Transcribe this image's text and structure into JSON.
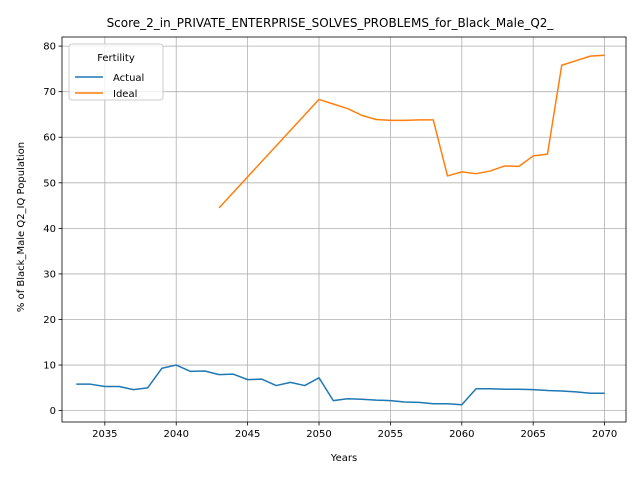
{
  "chart_data": {
    "type": "line",
    "title": "Score_2_in_PRIVATE_ENTERPRISE_SOLVES_PROBLEMS_for_Black_Male_Q2_",
    "xlabel": "Years",
    "ylabel": "% of Black_Male Q2_IQ Population",
    "xlim": [
      2032,
      2071.5
    ],
    "ylim": [
      -2.5,
      82
    ],
    "xticks": [
      2035,
      2040,
      2045,
      2050,
      2055,
      2060,
      2065,
      2070
    ],
    "yticks": [
      0,
      10,
      20,
      30,
      40,
      50,
      60,
      70,
      80
    ],
    "grid": true,
    "legend": {
      "title": "Fertility",
      "placement": "top-left"
    },
    "colors": {
      "Actual": "#1f77b4",
      "Ideal": "#ff7f0e"
    },
    "series": [
      {
        "name": "Actual",
        "x": [
          2033,
          2034,
          2035,
          2036,
          2037,
          2038,
          2039,
          2040,
          2041,
          2042,
          2043,
          2044,
          2045,
          2046,
          2047,
          2048,
          2049,
          2050,
          2051,
          2052,
          2053,
          2054,
          2055,
          2056,
          2057,
          2058,
          2059,
          2060,
          2061,
          2062,
          2063,
          2064,
          2065,
          2066,
          2067,
          2068,
          2069,
          2070
        ],
        "y": [
          5.8,
          5.8,
          5.3,
          5.3,
          4.6,
          5.0,
          9.3,
          10.0,
          8.6,
          8.7,
          7.9,
          8.0,
          6.8,
          6.9,
          5.5,
          6.2,
          5.5,
          7.2,
          2.2,
          2.6,
          2.5,
          2.3,
          2.2,
          1.9,
          1.8,
          1.5,
          1.5,
          1.3,
          4.8,
          4.8,
          4.7,
          4.7,
          4.6,
          4.4,
          4.3,
          4.1,
          3.8,
          3.8
        ]
      },
      {
        "name": "Ideal",
        "x": [
          2043,
          2050,
          2051,
          2052,
          2053,
          2054,
          2055,
          2056,
          2057,
          2058,
          2059,
          2060,
          2061,
          2062,
          2063,
          2064,
          2065,
          2066,
          2067,
          2068,
          2069,
          2070
        ],
        "y": [
          44.5,
          68.3,
          67.3,
          66.3,
          64.8,
          63.9,
          63.7,
          63.7,
          63.8,
          63.8,
          51.5,
          52.4,
          52.0,
          52.6,
          53.7,
          53.6,
          55.9,
          56.3,
          75.8,
          76.8,
          77.8,
          78.0
        ]
      }
    ]
  }
}
